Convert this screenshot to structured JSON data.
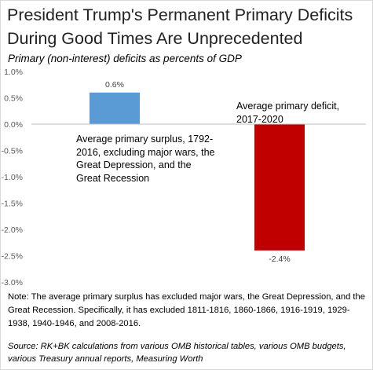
{
  "title_line1": "President Trump's Permanent Primary Deficits",
  "title_line2": "During Good Times Are Unprecedented",
  "subtitle": "Primary (non-interest) deficits as percents of GDP",
  "chart_data": {
    "type": "bar",
    "title": "President Trump's Permanent Primary Deficits During Good Times Are Unprecedented",
    "subtitle": "Primary (non-interest) deficits as percents of GDP",
    "categories": [
      "Average primary surplus, 1792-2016, excluding major wars, the Great Depression, and the Great Recession",
      "Average primary deficit, 2017-2020"
    ],
    "values": [
      0.6,
      -2.4
    ],
    "data_labels": [
      "0.6%",
      "-2.4%"
    ],
    "colors": [
      "#5b9bd5",
      "#c00000"
    ],
    "ylim": [
      -3.0,
      1.0
    ],
    "yticks": [
      1.0,
      0.5,
      0.0,
      -0.5,
      -1.0,
      -1.5,
      -2.0,
      -2.5,
      -3.0
    ],
    "ytick_labels": [
      "1.0%",
      "0.5%",
      "0.0%",
      "-0.5%",
      "-1.0%",
      "-1.5%",
      "-2.0%",
      "-2.5%",
      "-3.0%"
    ],
    "grid": false,
    "legend": "none"
  },
  "annotation_surplus": "Average primary surplus, 1792-2016, excluding major wars, the Great Depression, and the Great Recession",
  "annotation_deficit": "Average primary deficit, 2017-2020",
  "note": "Note:  The average primary surplus has excluded major wars, the Great Depression, and the  Great Recession.  Specifically, it has excluded 1811-1816, 1860-1866, 1916-1919, 1929-1938, 1940-1946, and 2008-2016.",
  "source": "Source:  RK+BK calculations from various OMB historical tables, various OMB budgets, various Treasury annual reports,  Measuring Worth"
}
